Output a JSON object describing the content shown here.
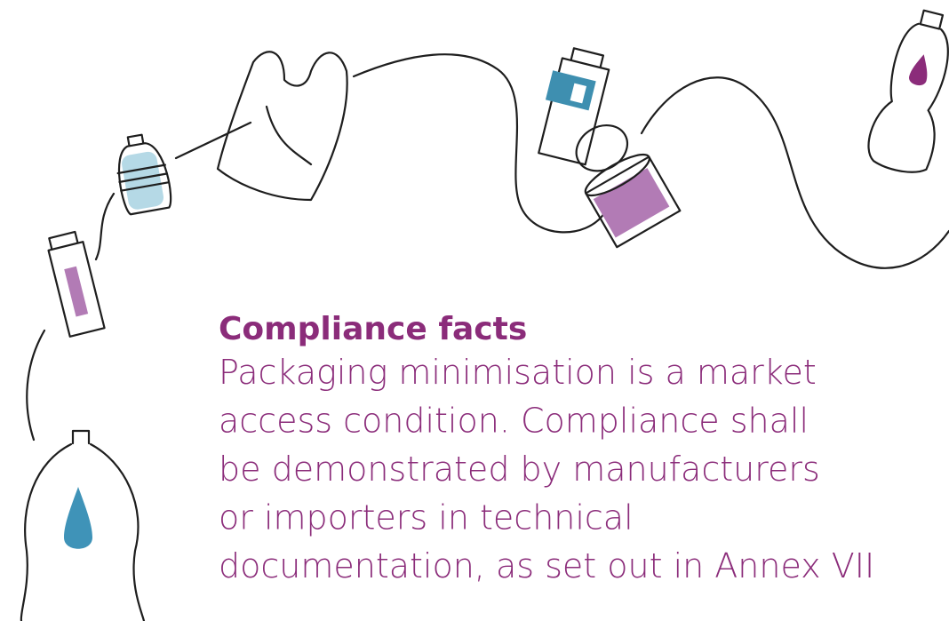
{
  "heading": "Compliance facts",
  "body_lines": [
    "Packaging minimisation is a market",
    "access condition. Compliance shall",
    "be demonstrated by manufacturers",
    "or importers in technical",
    "documentation, as set out in Annex VII"
  ]
}
